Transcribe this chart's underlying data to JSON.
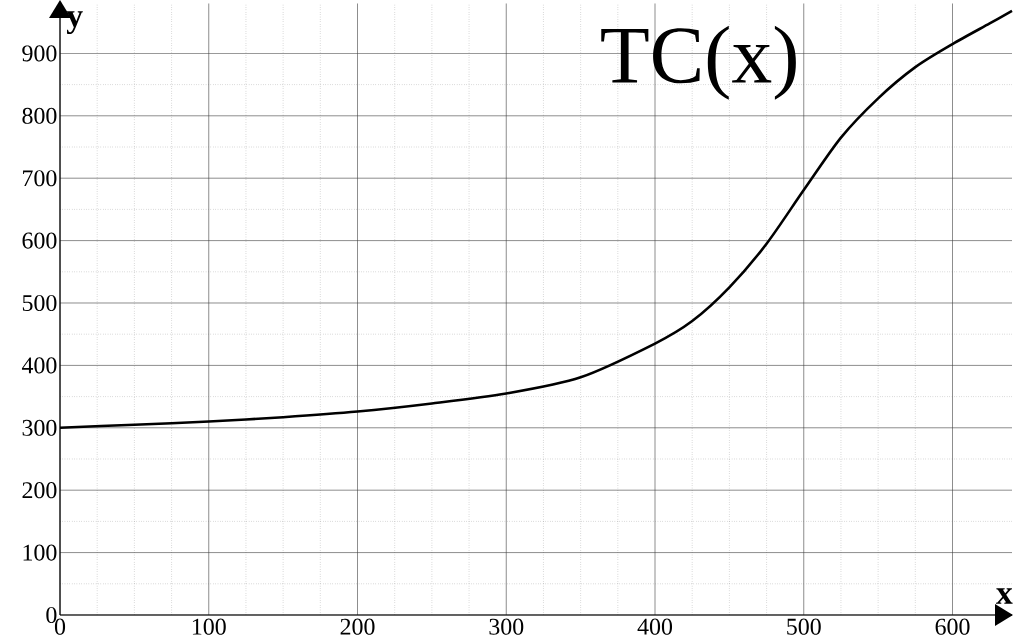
{
  "chart_data": {
    "type": "line",
    "xlabel": "x",
    "ylabel": "y",
    "xlim": [
      0,
      640
    ],
    "ylim": [
      0,
      980
    ],
    "xticks": [
      0,
      100,
      200,
      300,
      400,
      500,
      600
    ],
    "yticks": [
      0,
      100,
      200,
      300,
      400,
      500,
      600,
      700,
      800,
      900
    ],
    "grid": true,
    "marker": "none",
    "line_style": "solid",
    "series": [
      {
        "name": "TC(x)",
        "color": "#000000",
        "x": [
          0,
          50,
          100,
          150,
          200,
          250,
          300,
          350,
          400,
          425,
          450,
          475,
          500,
          525,
          550,
          575,
          600,
          625,
          640
        ],
        "values": [
          300,
          305,
          310,
          317,
          326,
          339,
          355,
          381,
          435,
          471,
          525,
          595,
          681,
          765,
          828,
          878,
          915,
          948,
          968
        ]
      }
    ]
  }
}
